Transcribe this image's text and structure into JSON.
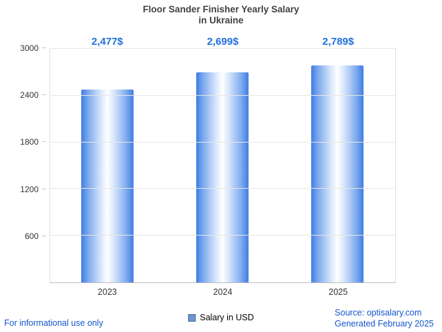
{
  "title": {
    "line1": "Floor Sander Finisher Yearly Salary",
    "line2": "in Ukraine"
  },
  "chart_data": {
    "type": "bar",
    "title": "Floor Sander Finisher Yearly Salary in Ukraine",
    "categories": [
      "2023",
      "2024",
      "2025"
    ],
    "values": [
      2477,
      2699,
      2789
    ],
    "value_labels": [
      "2,477$",
      "2,699$",
      "2,789$"
    ],
    "xlabel": "",
    "ylabel": "",
    "ylim": [
      0,
      3000
    ],
    "yticks": [
      600,
      1200,
      1800,
      2400,
      3000
    ],
    "grid": true,
    "legend_position": "bottom",
    "series_name": "Salary in USD",
    "bar_color_edge": "#3f7de2",
    "bar_color_center": "#ffffff",
    "value_label_color": "#1f6fde"
  },
  "legend": {
    "label": "Salary in USD",
    "swatch_color": "#6f94ce"
  },
  "footer": {
    "left_note": "For informational use only",
    "source": "Source: optisalary.com",
    "generated": "Generated February 2025"
  }
}
